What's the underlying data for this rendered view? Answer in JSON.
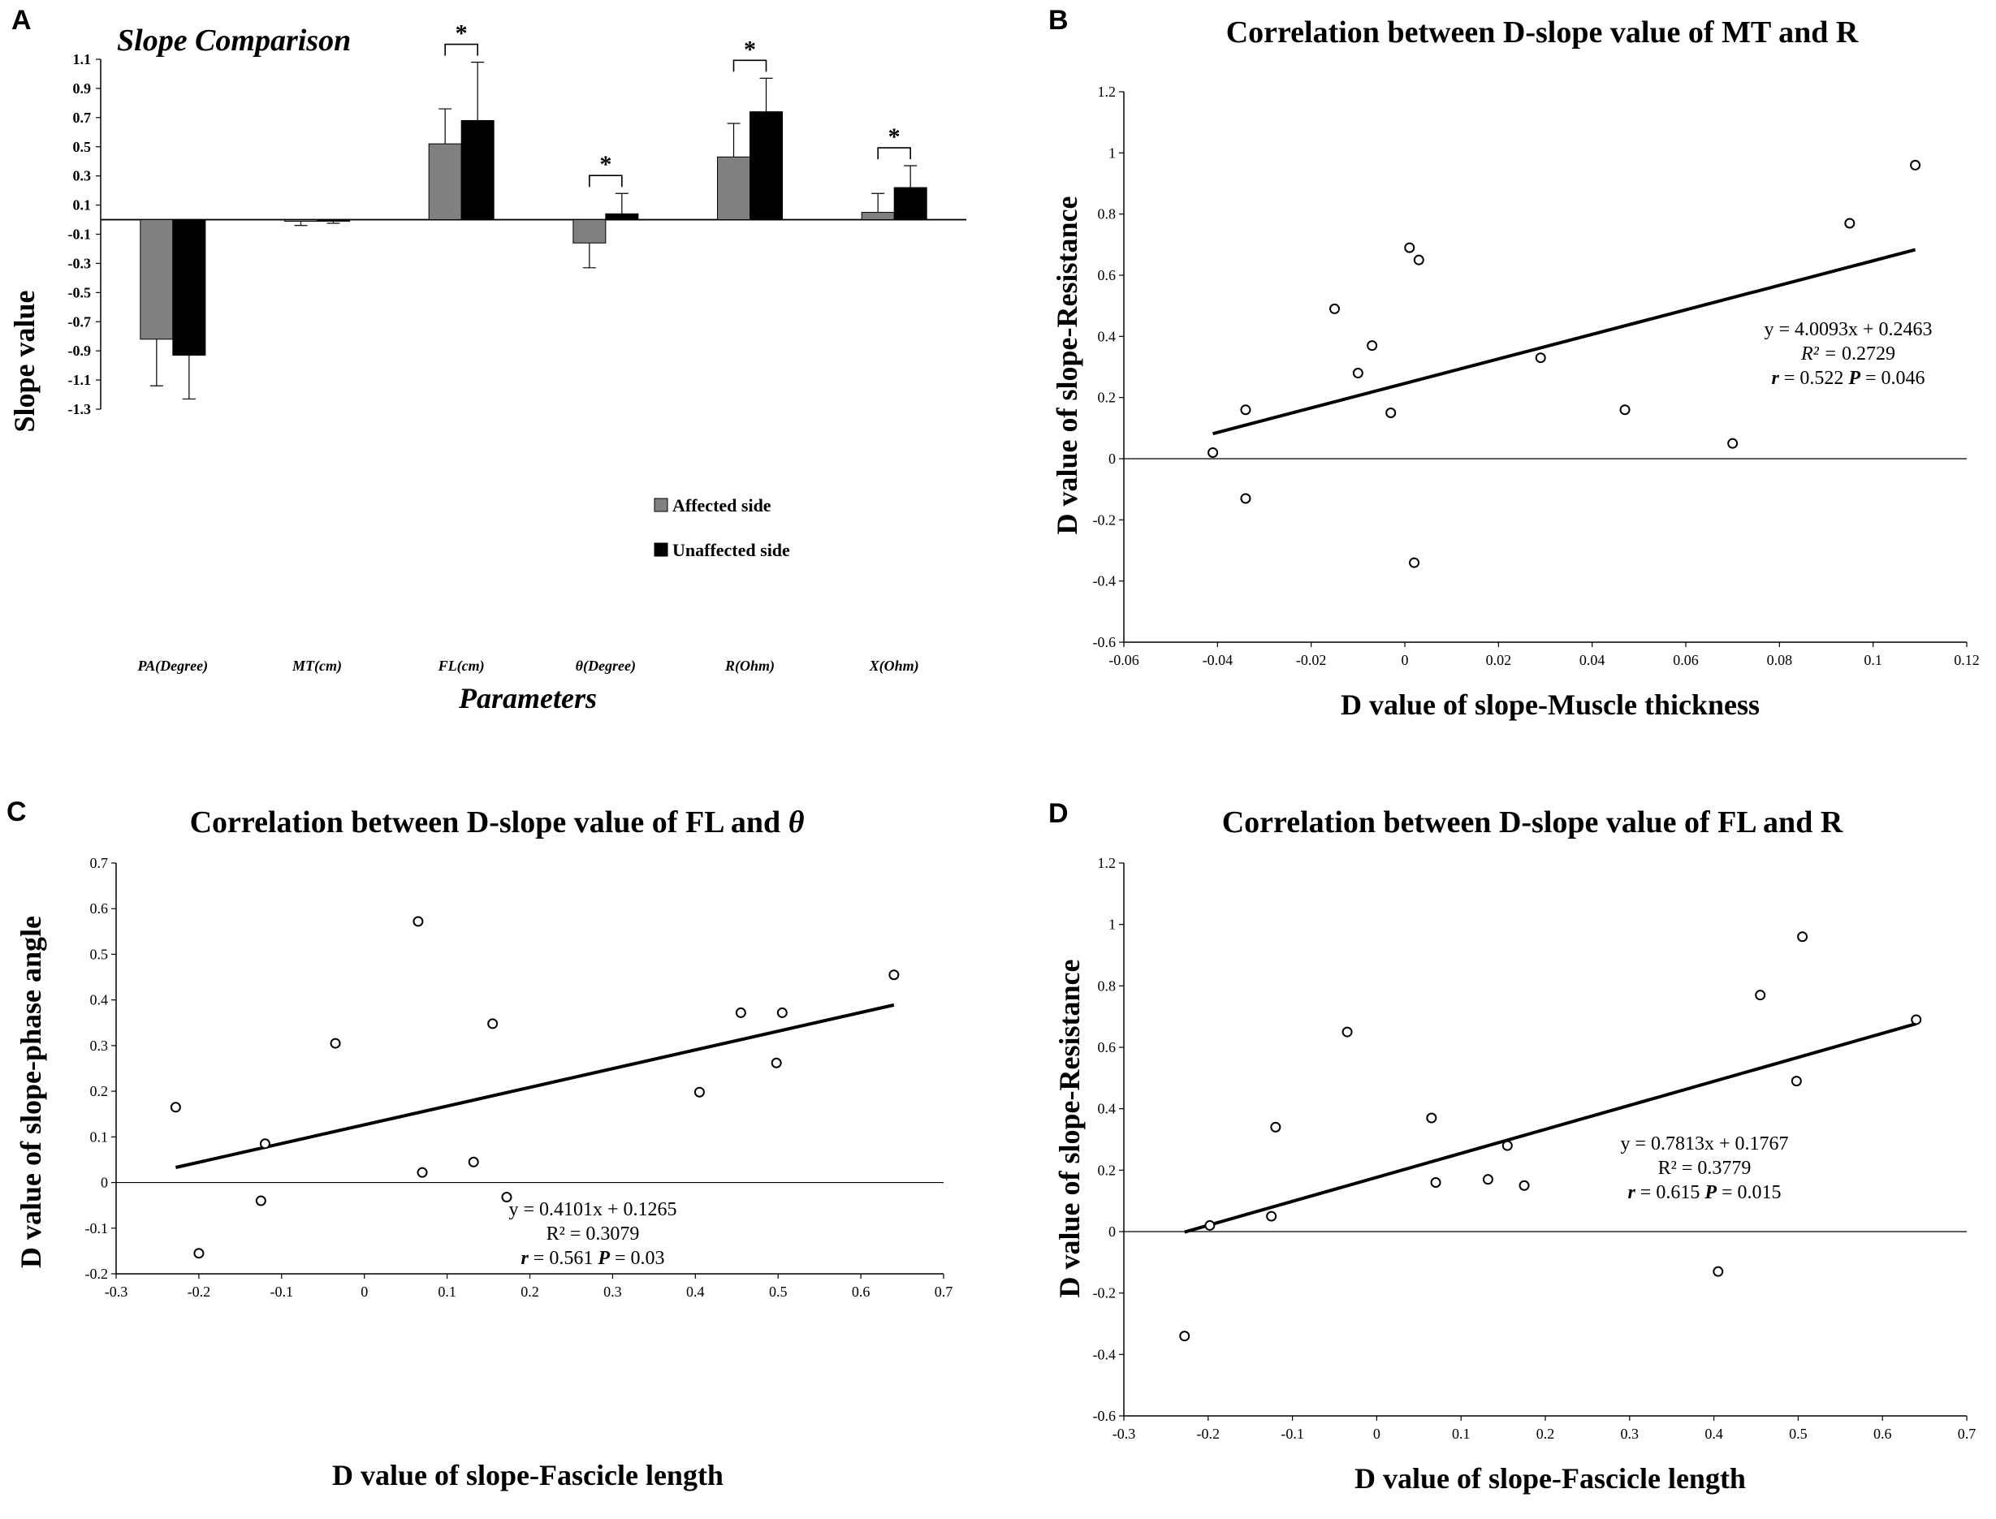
{
  "figure": {
    "panels": [
      {
        "letter": "A"
      },
      {
        "letter": "B"
      },
      {
        "letter": "C"
      },
      {
        "letter": "D"
      }
    ]
  },
  "chart_data": [
    {
      "type": "bar",
      "title": "Slope Comparison",
      "xlabel": "Parameters",
      "ylabel": "Slope value",
      "ylim": [
        -1.3,
        1.1
      ],
      "yticks": [
        "1.1",
        "0.9",
        "0.7",
        "0.5",
        "0.3",
        "0.1",
        "-0.1",
        "-0.3",
        "-0.5",
        "-0.7",
        "-0.9",
        "-1.1",
        "-1.3"
      ],
      "categories": [
        "PA(Degree)",
        "MT(cm)",
        "FL(cm)",
        "θ(Degree)",
        "R(Ohm)",
        "X(Ohm)"
      ],
      "series": [
        {
          "name": "Affected side",
          "color": "#808080",
          "values": [
            -0.82,
            -0.01,
            0.52,
            -0.16,
            0.43,
            0.05
          ],
          "errors": [
            0.32,
            0.03,
            0.24,
            0.17,
            0.23,
            0.13
          ]
        },
        {
          "name": "Unaffected side",
          "color": "#000000",
          "values": [
            -0.93,
            -0.005,
            0.68,
            0.04,
            0.74,
            0.22
          ],
          "errors": [
            0.3,
            0.02,
            0.4,
            0.14,
            0.23,
            0.15
          ]
        }
      ],
      "significance": [
        {
          "category": "FL(cm)",
          "label": "*"
        },
        {
          "category": "θ(Degree)",
          "label": "*"
        },
        {
          "category": "R(Ohm)",
          "label": "*"
        },
        {
          "category": "X(Ohm)",
          "label": "*"
        }
      ],
      "legend": "center-right"
    },
    {
      "type": "scatter",
      "title": "Correlation between D-slope value of MT and R",
      "xlabel": "D value of slope-Muscle thickness",
      "ylabel": "D value of slope-Resistance",
      "xlim": [
        -0.06,
        0.12
      ],
      "ylim": [
        -0.6,
        1.2
      ],
      "xticks": [
        "-0.06",
        "-0.04",
        "-0.02",
        "0",
        "0.02",
        "0.04",
        "0.06",
        "0.08",
        "0.1",
        "0.12"
      ],
      "yticks": [
        "1.2",
        "1",
        "0.8",
        "0.6",
        "0.4",
        "0.2",
        "0",
        "-0.2",
        "-0.4",
        "-0.6"
      ],
      "points": [
        [
          -0.041,
          0.02
        ],
        [
          -0.034,
          0.16
        ],
        [
          -0.034,
          -0.13
        ],
        [
          -0.015,
          0.49
        ],
        [
          -0.01,
          0.28
        ],
        [
          -0.007,
          0.37
        ],
        [
          -0.003,
          0.15
        ],
        [
          0.001,
          0.69
        ],
        [
          0.002,
          -0.34
        ],
        [
          0.003,
          0.65
        ],
        [
          0.029,
          0.33
        ],
        [
          0.047,
          0.16
        ],
        [
          0.07,
          0.05
        ],
        [
          0.095,
          0.77
        ],
        [
          0.109,
          0.96
        ]
      ],
      "trendline": {
        "slope": 4.0093,
        "intercept": 0.2463,
        "x_range": [
          -0.041,
          0.109
        ]
      },
      "annotation": {
        "equation": "y = 4.0093x + 0.2463",
        "r2_label": "R² = ",
        "r2": "0.2729",
        "r_label": "r",
        "r": " = 0.522 ",
        "p_label": "P",
        "p": " = 0.046"
      }
    },
    {
      "type": "scatter",
      "title": "Correlation between D-slope value of FL and ",
      "title_symbol": "θ",
      "xlabel": "D value of slope-Fascicle length",
      "ylabel": "D value of slope-phase angle",
      "xlim": [
        -0.3,
        0.7
      ],
      "ylim": [
        -0.2,
        0.7
      ],
      "xticks": [
        "-0.3",
        "-0.2",
        "-0.1",
        "0",
        "0.1",
        "0.2",
        "0.3",
        "0.4",
        "0.5",
        "0.6",
        "0.7"
      ],
      "yticks": [
        "0.7",
        "0.6",
        "0.5",
        "0.4",
        "0.3",
        "0.2",
        "0.1",
        "0",
        "-0.1",
        "-0.2"
      ],
      "points": [
        [
          -0.228,
          0.165
        ],
        [
          -0.2,
          -0.155
        ],
        [
          -0.125,
          -0.04
        ],
        [
          -0.12,
          0.085
        ],
        [
          -0.035,
          0.305
        ],
        [
          0.065,
          0.572
        ],
        [
          0.07,
          0.022
        ],
        [
          0.132,
          0.045
        ],
        [
          0.155,
          0.348
        ],
        [
          0.172,
          -0.032
        ],
        [
          0.405,
          0.198
        ],
        [
          0.455,
          0.372
        ],
        [
          0.498,
          0.262
        ],
        [
          0.505,
          0.372
        ],
        [
          0.64,
          0.455
        ]
      ],
      "trendline": {
        "slope": 0.4101,
        "intercept": 0.1265,
        "x_range": [
          -0.228,
          0.64
        ]
      },
      "annotation": {
        "equation": "y = 0.4101x + 0.1265",
        "r2_label": "R² = ",
        "r2": "0.3079",
        "r_label": "r",
        "r": " = 0.561  ",
        "p_label": "P",
        "p": " = 0.03"
      }
    },
    {
      "type": "scatter",
      "title": "Correlation between D-slope value of FL and R",
      "xlabel": "D value of slope-Fascicle length",
      "ylabel": "D value of slope-Resistance",
      "xlim": [
        -0.3,
        0.7
      ],
      "ylim": [
        -0.6,
        1.2
      ],
      "xticks": [
        "-0.3",
        "-0.2",
        "-0.1",
        "0",
        "0.1",
        "0.2",
        "0.3",
        "0.4",
        "0.5",
        "0.6",
        "0.7"
      ],
      "yticks": [
        "1.2",
        "1",
        "0.8",
        "0.6",
        "0.4",
        "0.2",
        "0",
        "-0.2",
        "-0.4",
        "-0.6"
      ],
      "points": [
        [
          -0.228,
          -0.34
        ],
        [
          -0.198,
          0.02
        ],
        [
          -0.125,
          0.05
        ],
        [
          -0.12,
          0.34
        ],
        [
          -0.035,
          0.65
        ],
        [
          0.065,
          0.37
        ],
        [
          0.07,
          0.16
        ],
        [
          0.132,
          0.17
        ],
        [
          0.155,
          0.28
        ],
        [
          0.175,
          0.15
        ],
        [
          0.405,
          -0.13
        ],
        [
          0.455,
          0.77
        ],
        [
          0.498,
          0.49
        ],
        [
          0.505,
          0.96
        ],
        [
          0.64,
          0.69
        ]
      ],
      "trendline": {
        "slope": 0.7813,
        "intercept": 0.1767,
        "x_range": [
          -0.228,
          0.64
        ]
      },
      "annotation": {
        "equation": "y = 0.7813x + 0.1767",
        "r2_label": "R² = ",
        "r2": "0.3779",
        "r_label": "r",
        "r": " = 0.615 ",
        "p_label": "P",
        "p": " = 0.015"
      }
    }
  ]
}
